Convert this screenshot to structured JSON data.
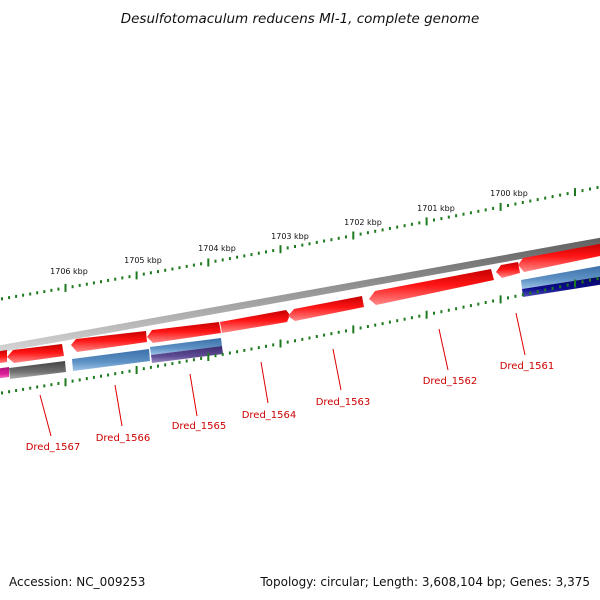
{
  "title": "Desulfotomaculum reducens MI-1, complete genome",
  "footer": {
    "accession": "Accession: NC_009253",
    "topology": "Topology: circular; Length: 3,608,104 bp; Genes: 3,375"
  },
  "colors": {
    "backbone": "#888888",
    "forward_gene": "#ee0000",
    "reverse_blue": "#4a7fb5",
    "reverse_purple": "#5a4a8a",
    "reverse_navy": "#0a0a7a",
    "reverse_gray": "#6e6e6e",
    "magenta": "#e0209a",
    "label": "#cc0000",
    "ticks": "#1f7a1f"
  },
  "scale_labels": [
    "1706 kbp",
    "1705 kbp",
    "1704 kbp",
    "1703 kbp",
    "1702 kbp",
    "1701 kbp",
    "1700 kbp"
  ],
  "genes": [
    "Dred_1567",
    "Dred_1566",
    "Dred_1565",
    "Dred_1564",
    "Dred_1563",
    "Dred_1562",
    "Dred_1561"
  ]
}
